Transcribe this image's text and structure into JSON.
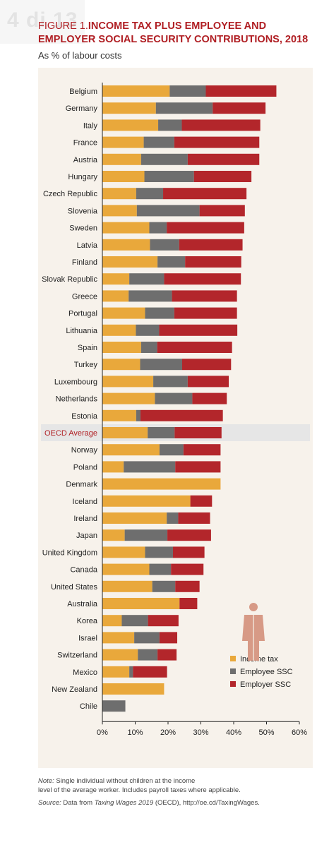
{
  "watermark": "4 di 13",
  "figure": {
    "label_prefix": "FIGURE 1.",
    "title": "INCOME TAX PLUS EMPLOYEE AND EMPLOYER SOCIAL SECURITY CONTRIBUTIONS, 2018",
    "subtitle": "As % of labour costs"
  },
  "notes": {
    "note_label": "Note:",
    "note_line1": "Single individual without children at the income",
    "note_line2": "level of the average worker. Includes payroll taxes where applicable.",
    "source_label": "Source:",
    "source_text1": "Data from",
    "source_italic": "Taxing Wages 2019",
    "source_text2": "(OECD), http://oe.cd/TaxingWages."
  },
  "colors": {
    "income_tax": "#e9a83b",
    "employee_ssc": "#6e6e6e",
    "employer_ssc": "#b3262b",
    "highlight_row": "#e6e6e6",
    "oecd_label": "#b01e23",
    "icon": "#d79a86"
  },
  "chart_data": {
    "type": "bar",
    "orientation": "horizontal",
    "stacked": true,
    "categories": [
      "Belgium",
      "Germany",
      "Italy",
      "France",
      "Austria",
      "Hungary",
      "Czech Republic",
      "Slovenia",
      "Sweden",
      "Latvia",
      "Finland",
      "Slovak Republic",
      "Greece",
      "Portugal",
      "Lithuania",
      "Spain",
      "Turkey",
      "Luxembourg",
      "Netherlands",
      "Estonia",
      "OECD Average",
      "Norway",
      "Poland",
      "Denmark",
      "Iceland",
      "Ireland",
      "Japan",
      "United Kingdom",
      "Canada",
      "United States",
      "Australia",
      "Korea",
      "Israel",
      "Switzerland",
      "Mexico",
      "New Zealand",
      "Chile"
    ],
    "highlight": "OECD Average",
    "series": [
      {
        "name": "Income tax",
        "values": [
          20.5,
          16.3,
          17.0,
          12.6,
          11.8,
          12.8,
          10.3,
          10.5,
          14.3,
          14.5,
          16.8,
          8.2,
          8.0,
          13.0,
          10.2,
          11.8,
          11.5,
          15.5,
          16.0,
          10.3,
          13.8,
          17.4,
          6.5,
          36.0,
          26.8,
          19.6,
          6.8,
          13.0,
          14.3,
          15.2,
          23.5,
          5.9,
          9.7,
          10.8,
          8.2,
          18.8,
          0.0
        ]
      },
      {
        "name": "Employee SSC",
        "values": [
          11.0,
          17.3,
          7.2,
          9.3,
          14.2,
          15.1,
          8.2,
          19.1,
          5.3,
          8.9,
          8.4,
          10.6,
          13.2,
          8.9,
          7.1,
          4.9,
          12.8,
          10.5,
          11.4,
          1.3,
          8.2,
          7.3,
          15.7,
          0.0,
          0.0,
          3.5,
          13.0,
          8.5,
          6.6,
          7.0,
          0.0,
          8.0,
          7.7,
          6.0,
          1.1,
          0.0,
          7.0
        ]
      },
      {
        "name": "Employer SSC",
        "values": [
          21.5,
          16.1,
          23.9,
          25.9,
          21.8,
          17.5,
          25.4,
          13.8,
          23.6,
          19.3,
          17.1,
          23.4,
          19.8,
          19.1,
          23.8,
          22.8,
          14.9,
          12.5,
          10.5,
          25.1,
          14.3,
          11.3,
          13.8,
          0.0,
          6.6,
          9.7,
          13.3,
          9.6,
          9.9,
          7.4,
          5.4,
          9.3,
          5.4,
          5.8,
          10.4,
          0.0,
          0.0
        ]
      }
    ],
    "xlim": [
      0,
      60
    ],
    "xticks": [
      0,
      10,
      20,
      30,
      40,
      50,
      60
    ],
    "xtick_labels": [
      "0%",
      "10%",
      "20%",
      "30%",
      "40%",
      "50%",
      "60%"
    ],
    "legend_position": "bottom-right",
    "grid": false
  }
}
